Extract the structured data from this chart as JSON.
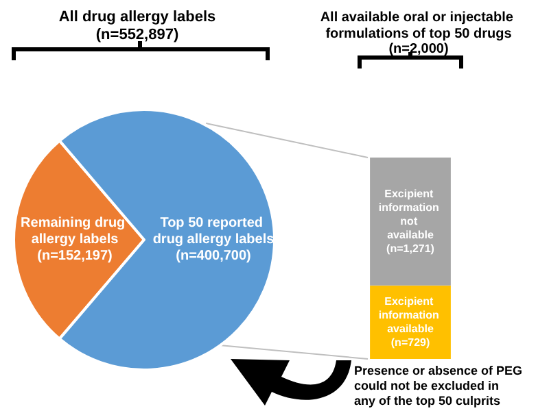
{
  "chart_data": [
    {
      "type": "pie",
      "title": "All drug allergy labels",
      "subtitle": "(n=552,897)",
      "categories": [
        "Remaining drug allergy labels",
        "Top 50 reported drug allergy labels"
      ],
      "values": [
        152197,
        400700
      ],
      "colors": [
        "#ed7d31",
        "#5b9bd5"
      ],
      "value_labels": [
        "(n=152,197)",
        "(n=400,700)"
      ]
    },
    {
      "type": "bar",
      "stacked": true,
      "title": "All available oral or injectable formulations of top 50 drugs",
      "subtitle": "(n=2,000)",
      "categories": [
        null
      ],
      "series": [
        {
          "name": "Excipient information available",
          "color": "#ffc000",
          "values": [
            729
          ],
          "value_labels": [
            "(n=729)"
          ]
        },
        {
          "name": "Excipient information not available",
          "color": "#a6a6a6",
          "values": [
            1271
          ],
          "value_labels": [
            "(n=1,271)"
          ]
        }
      ],
      "annotations": [
        "Presence or absence of PEG could not be excluded in any of the top 50 culprits"
      ]
    }
  ]
}
